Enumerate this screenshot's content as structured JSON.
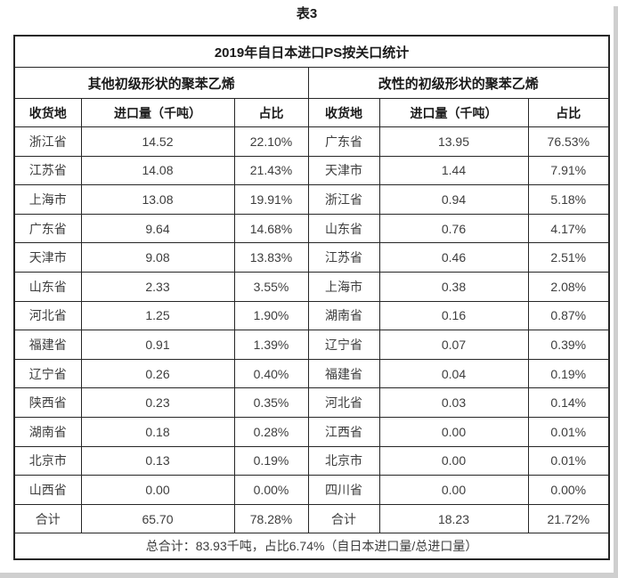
{
  "page_title": "表3",
  "table": {
    "title": "2019年自日本进口PS按关口统计",
    "footer": "总合计：83.93千吨，占比6.74%（自日本进口量/总进口量）",
    "groups": [
      {
        "label": "其他初级形状的聚苯乙烯",
        "columns": [
          "收货地",
          "进口量（千吨）",
          "占比"
        ],
        "rows": [
          [
            "浙江省",
            "14.52",
            "22.10%"
          ],
          [
            "江苏省",
            "14.08",
            "21.43%"
          ],
          [
            "上海市",
            "13.08",
            "19.91%"
          ],
          [
            "广东省",
            "9.64",
            "14.68%"
          ],
          [
            "天津市",
            "9.08",
            "13.83%"
          ],
          [
            "山东省",
            "2.33",
            "3.55%"
          ],
          [
            "河北省",
            "1.25",
            "1.90%"
          ],
          [
            "福建省",
            "0.91",
            "1.39%"
          ],
          [
            "辽宁省",
            "0.26",
            "0.40%"
          ],
          [
            "陕西省",
            "0.23",
            "0.35%"
          ],
          [
            "湖南省",
            "0.18",
            "0.28%"
          ],
          [
            "北京市",
            "0.13",
            "0.19%"
          ],
          [
            "山西省",
            "0.00",
            "0.00%"
          ]
        ],
        "total": [
          "合计",
          "65.70",
          "78.28%"
        ]
      },
      {
        "label": "改性的初级形状的聚苯乙烯",
        "columns": [
          "收货地",
          "进口量（千吨）",
          "占比"
        ],
        "rows": [
          [
            "广东省",
            "13.95",
            "76.53%"
          ],
          [
            "天津市",
            "1.44",
            "7.91%"
          ],
          [
            "浙江省",
            "0.94",
            "5.18%"
          ],
          [
            "山东省",
            "0.76",
            "4.17%"
          ],
          [
            "江苏省",
            "0.46",
            "2.51%"
          ],
          [
            "上海市",
            "0.38",
            "2.08%"
          ],
          [
            "湖南省",
            "0.16",
            "0.87%"
          ],
          [
            "辽宁省",
            "0.07",
            "0.39%"
          ],
          [
            "福建省",
            "0.04",
            "0.19%"
          ],
          [
            "河北省",
            "0.03",
            "0.14%"
          ],
          [
            "江西省",
            "0.00",
            "0.01%"
          ],
          [
            "北京市",
            "0.00",
            "0.01%"
          ],
          [
            "四川省",
            "0.00",
            "0.00%"
          ]
        ],
        "total": [
          "合计",
          "18.23",
          "21.72%"
        ]
      }
    ]
  }
}
